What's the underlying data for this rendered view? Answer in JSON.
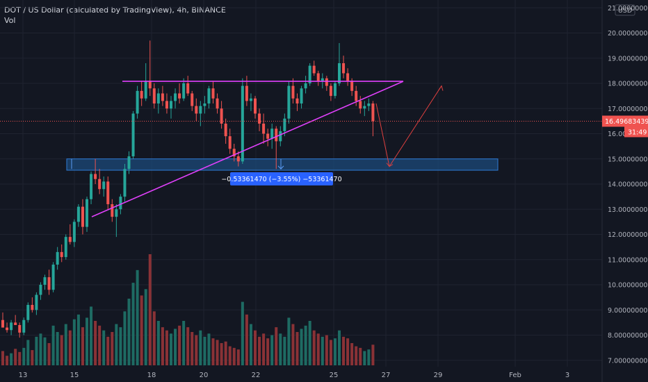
{
  "header": {
    "symbol_line": "DOT / US Dollar (calculated by TradingView), 4h, BINANCE",
    "volume_label": "Vol"
  },
  "axis": {
    "currency": "USD",
    "price_ticks": [
      "21.00000000",
      "20.00000000",
      "19.00000000",
      "18.00000000",
      "17.00000000",
      "16.00000000",
      "15.00000000",
      "14.00000000",
      "13.00000000",
      "12.00000000",
      "11.00000000",
      "10.00000000",
      "9.00000000",
      "8.00000000",
      "7.00000000"
    ],
    "date_ticks": [
      "13",
      "15",
      "18",
      "20",
      "22",
      "25",
      "27",
      "29",
      "Feb",
      "3"
    ]
  },
  "last_price": {
    "value": "16.49683439",
    "countdown": "31:49"
  },
  "measure_label": "−0.53361470 (−3.55%) −53361470",
  "colors": {
    "background": "#131722",
    "up": "#26a69a",
    "down": "#ef5350",
    "volume_up": "#1e6b63",
    "volume_down": "#8a3236",
    "triangle": "#e040fb",
    "zone_fill": "#1c4a7a",
    "zone_border": "#2e7bd6",
    "projection": "#e0403f",
    "label_bg": "#2962ff"
  },
  "chart_data": {
    "type": "candlestick",
    "interval": "4h",
    "ylim": [
      6.8,
      21.2
    ],
    "candles": [
      [
        8.6,
        8.9,
        8.4,
        8.3
      ],
      [
        8.3,
        8.5,
        8.1,
        8.2
      ],
      [
        8.2,
        8.6,
        8.0,
        8.5
      ],
      [
        8.5,
        8.8,
        8.4,
        8.4
      ],
      [
        8.4,
        8.5,
        7.9,
        8.1
      ],
      [
        8.1,
        8.7,
        8.0,
        8.6
      ],
      [
        8.6,
        9.3,
        8.5,
        9.2
      ],
      [
        9.2,
        9.5,
        8.9,
        9.0
      ],
      [
        9.0,
        9.7,
        8.8,
        9.6
      ],
      [
        9.6,
        10.1,
        9.4,
        10.0
      ],
      [
        10.0,
        10.4,
        9.8,
        10.3
      ],
      [
        10.3,
        10.6,
        9.6,
        9.8
      ],
      [
        9.8,
        10.9,
        9.7,
        10.8
      ],
      [
        10.8,
        11.5,
        10.6,
        11.3
      ],
      [
        11.3,
        11.6,
        10.9,
        11.1
      ],
      [
        11.1,
        12.0,
        11.0,
        11.9
      ],
      [
        11.9,
        12.4,
        11.6,
        11.7
      ],
      [
        11.7,
        12.6,
        11.5,
        12.5
      ],
      [
        12.5,
        13.2,
        12.3,
        13.1
      ],
      [
        13.1,
        13.4,
        12.0,
        12.3
      ],
      [
        12.3,
        13.5,
        12.1,
        13.4
      ],
      [
        13.4,
        14.5,
        13.2,
        14.4
      ],
      [
        14.4,
        15.0,
        14.0,
        14.2
      ],
      [
        14.2,
        14.6,
        13.6,
        13.8
      ],
      [
        13.8,
        14.3,
        13.5,
        14.1
      ],
      [
        14.1,
        14.3,
        13.0,
        13.2
      ],
      [
        13.2,
        13.4,
        12.5,
        12.7
      ],
      [
        12.7,
        13.2,
        11.9,
        13.0
      ],
      [
        13.0,
        13.6,
        12.8,
        13.5
      ],
      [
        13.5,
        14.8,
        13.3,
        14.6
      ],
      [
        14.6,
        15.3,
        14.4,
        15.1
      ],
      [
        15.1,
        16.9,
        15.0,
        16.8
      ],
      [
        16.8,
        17.9,
        16.6,
        17.7
      ],
      [
        17.7,
        18.1,
        17.1,
        17.4
      ],
      [
        17.4,
        18.8,
        17.3,
        18.1
      ],
      [
        18.1,
        19.7,
        17.5,
        17.8
      ],
      [
        17.8,
        18.0,
        17.0,
        17.2
      ],
      [
        17.2,
        17.8,
        16.8,
        17.6
      ],
      [
        17.6,
        17.9,
        17.1,
        17.3
      ],
      [
        17.3,
        17.6,
        16.8,
        17.0
      ],
      [
        17.0,
        17.5,
        16.6,
        17.3
      ],
      [
        17.3,
        17.8,
        17.0,
        17.6
      ],
      [
        17.6,
        18.0,
        17.2,
        17.4
      ],
      [
        17.4,
        18.2,
        17.3,
        18.0
      ],
      [
        18.0,
        18.3,
        17.5,
        17.6
      ],
      [
        17.6,
        17.7,
        16.9,
        17.1
      ],
      [
        17.1,
        17.4,
        16.5,
        16.8
      ],
      [
        16.8,
        17.3,
        16.3,
        17.1
      ],
      [
        17.1,
        17.5,
        16.8,
        17.2
      ],
      [
        17.2,
        17.9,
        17.0,
        17.8
      ],
      [
        17.8,
        18.1,
        17.2,
        17.4
      ],
      [
        17.4,
        17.6,
        16.8,
        17.0
      ],
      [
        17.0,
        17.3,
        16.2,
        16.4
      ],
      [
        16.4,
        16.6,
        15.6,
        15.9
      ],
      [
        15.9,
        16.2,
        15.2,
        15.4
      ],
      [
        15.4,
        15.6,
        14.9,
        15.1
      ],
      [
        15.1,
        15.3,
        14.7,
        14.9
      ],
      [
        14.9,
        18.2,
        14.8,
        17.9
      ],
      [
        17.9,
        18.3,
        17.1,
        17.3
      ],
      [
        17.3,
        17.6,
        16.9,
        17.4
      ],
      [
        17.4,
        17.5,
        16.6,
        16.8
      ],
      [
        16.8,
        17.0,
        16.1,
        16.4
      ],
      [
        16.4,
        16.8,
        15.6,
        16.0
      ],
      [
        16.0,
        16.2,
        15.5,
        15.8
      ],
      [
        15.8,
        16.4,
        15.4,
        16.2
      ],
      [
        16.2,
        16.3,
        14.6,
        15.7
      ],
      [
        15.7,
        16.3,
        15.5,
        16.1
      ],
      [
        16.1,
        16.8,
        15.9,
        16.6
      ],
      [
        16.6,
        18.1,
        16.4,
        17.9
      ],
      [
        17.9,
        18.2,
        17.2,
        17.4
      ],
      [
        17.4,
        17.6,
        16.9,
        17.2
      ],
      [
        17.2,
        17.9,
        17.0,
        17.8
      ],
      [
        17.8,
        18.3,
        17.6,
        18.0
      ],
      [
        18.0,
        18.8,
        17.9,
        18.7
      ],
      [
        18.7,
        18.9,
        18.3,
        18.4
      ],
      [
        18.4,
        18.5,
        17.9,
        18.1
      ],
      [
        18.1,
        18.4,
        17.8,
        18.2
      ],
      [
        18.2,
        18.3,
        17.7,
        17.9
      ],
      [
        17.9,
        18.0,
        17.3,
        17.5
      ],
      [
        17.5,
        18.1,
        17.4,
        18.0
      ],
      [
        18.0,
        19.6,
        17.9,
        18.8
      ],
      [
        18.8,
        19.1,
        18.2,
        18.4
      ],
      [
        18.4,
        18.6,
        17.9,
        18.1
      ],
      [
        18.1,
        18.2,
        17.5,
        17.7
      ],
      [
        17.7,
        17.9,
        17.1,
        17.3
      ],
      [
        17.3,
        17.5,
        16.8,
        17.0
      ],
      [
        17.0,
        17.3,
        16.7,
        17.1
      ],
      [
        17.1,
        17.4,
        16.9,
        17.2
      ],
      [
        17.2,
        17.3,
        15.9,
        16.5
      ]
    ],
    "volume": [
      0.45,
      0.3,
      0.38,
      0.52,
      0.42,
      0.55,
      0.8,
      0.48,
      0.9,
      1.0,
      0.88,
      0.7,
      1.25,
      1.05,
      0.95,
      1.3,
      1.1,
      1.45,
      1.6,
      1.2,
      1.5,
      1.85,
      1.4,
      1.25,
      1.1,
      0.9,
      1.05,
      1.3,
      1.2,
      1.7,
      2.1,
      2.6,
      3.0,
      2.2,
      2.4,
      3.5,
      1.7,
      1.4,
      1.2,
      1.1,
      1.0,
      1.15,
      1.25,
      1.4,
      1.2,
      1.05,
      0.95,
      1.1,
      0.9,
      1.0,
      0.85,
      0.8,
      0.7,
      0.75,
      0.6,
      0.55,
      0.5,
      2.0,
      1.6,
      1.3,
      1.1,
      0.9,
      1.0,
      0.85,
      0.95,
      1.2,
      1.0,
      0.9,
      1.5,
      1.3,
      1.05,
      1.15,
      1.25,
      1.4,
      1.1,
      1.0,
      0.9,
      0.95,
      0.8,
      0.85,
      1.1,
      0.9,
      0.85,
      0.7,
      0.6,
      0.55,
      0.45,
      0.5,
      0.65
    ],
    "triangle": {
      "upper_price": 18.08,
      "lower_start_price": 12.7,
      "lower_end_price": 18.08
    },
    "support_zone": {
      "from": 14.55,
      "to": 15.0
    },
    "projection": [
      17.2,
      14.7,
      17.9
    ]
  }
}
